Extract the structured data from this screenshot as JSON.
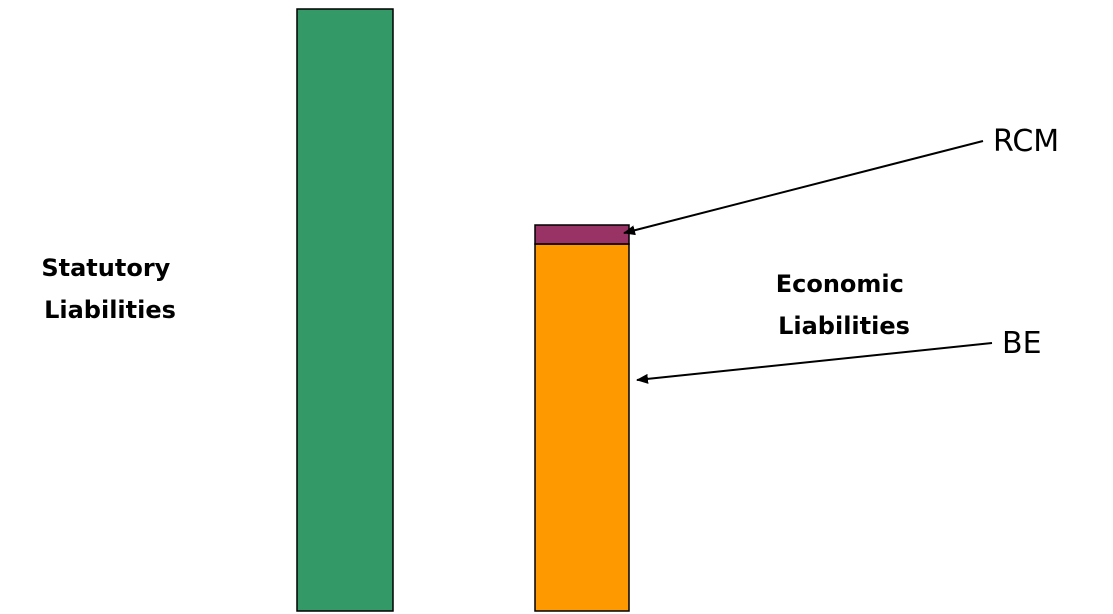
{
  "left_column": {
    "label_line1": "Statutory",
    "label_line2": "Liabilities"
  },
  "right_column": {
    "label_line1": "Economic",
    "label_line2": "Liabilities"
  },
  "callouts": {
    "top_label": "RCM",
    "bottom_label": "BE"
  },
  "colors": {
    "statutory_bar": "#339966",
    "be_segment": "#FF9900",
    "rcm_segment": "#993366"
  }
}
